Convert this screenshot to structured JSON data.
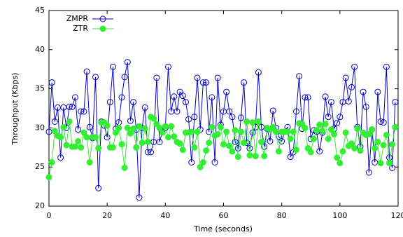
{
  "chart_data": {
    "type": "line",
    "x_label": "Time (seconds)",
    "y_label": "Throughput (Kbps)",
    "x": [
      0,
      1,
      2,
      3,
      4,
      5,
      6,
      7,
      8,
      9,
      10,
      11,
      12,
      13,
      14,
      15,
      16,
      17,
      18,
      19,
      20,
      21,
      22,
      23,
      24,
      25,
      26,
      27,
      28,
      29,
      30,
      31,
      32,
      33,
      34,
      35,
      36,
      37,
      38,
      39,
      40,
      41,
      42,
      43,
      44,
      45,
      46,
      47,
      48,
      49,
      50,
      51,
      52,
      53,
      54,
      55,
      56,
      57,
      58,
      59,
      60,
      61,
      62,
      63,
      64,
      65,
      66,
      67,
      68,
      69,
      70,
      71,
      72,
      73,
      74,
      75,
      76,
      77,
      78,
      79,
      80,
      81,
      82,
      83,
      84,
      85,
      86,
      87,
      88,
      89,
      90,
      91,
      92,
      93,
      94,
      95,
      96,
      97,
      98,
      99,
      100,
      101,
      102,
      103,
      104,
      105,
      106,
      107,
      108,
      109,
      110,
      111,
      112,
      113,
      114,
      115,
      116,
      117,
      118,
      119
    ],
    "series": [
      {
        "name": "ZMPR",
        "color": "#0000cc",
        "marker_filled": false,
        "values": [
          29.5,
          35.8,
          30.8,
          32.6,
          26.2,
          32.6,
          30,
          32.7,
          32.7,
          33.9,
          29.8,
          32.1,
          32.1,
          37.2,
          30.1,
          28.7,
          36.5,
          22.3,
          30.8,
          30.3,
          28.8,
          33.3,
          37.8,
          29.9,
          30.7,
          33.9,
          36.5,
          38.4,
          30.9,
          33.3,
          29.8,
          21.1,
          30.0,
          32.6,
          26.9,
          26.9,
          28.2,
          36.4,
          28.2,
          29.5,
          30.0,
          37.8,
          32.1,
          34,
          32.1,
          34.6,
          34.1,
          33.3,
          31.1,
          25.6,
          31.4,
          36.4,
          29.8,
          35.8,
          35.8,
          29.5,
          33.9,
          25.6,
          36.4,
          30.4,
          32.1,
          34.6,
          32.1,
          31.4,
          28.2,
          27.4,
          31.3,
          35.8,
          28.1,
          27.4,
          29.4,
          30.1,
          37.1,
          30.1,
          27.6,
          29.9,
          28.3,
          32.2,
          30.0,
          28.9,
          28.3,
          29.5,
          30.1,
          26.3,
          26.9,
          32.1,
          36.6,
          29.9,
          33.9,
          33.9,
          28.6,
          29.7,
          29.5,
          27,
          29.4,
          34,
          31.4,
          33.3,
          29.9,
          30.6,
          31.4,
          33.3,
          36.4,
          33.4,
          35.2,
          37.8,
          30.1,
          27.6,
          34.6,
          32.7,
          24.3,
          29.8,
          25.6,
          34.6,
          30.8,
          30.7,
          37.8,
          26.2,
          24.9,
          33.3
        ]
      },
      {
        "name": "ZTR",
        "color": "#33ee33",
        "marker_filled": true,
        "values": [
          23.7,
          25.6,
          29.6,
          29.0,
          28.8,
          30.1,
          27.8,
          30.8,
          27.6,
          27.6,
          28.3,
          27.5,
          29.4,
          28.8,
          25.6,
          28.8,
          28.8,
          27.4,
          30.7,
          30.7,
          30.3,
          27.5,
          27.5,
          29.4,
          30.0,
          27.9,
          24.9,
          30.0,
          29.3,
          29.9,
          27.5,
          30.2,
          28.1,
          29.9,
          28.2,
          31.4,
          31.2,
          30.5,
          30.0,
          29.4,
          30.2,
          28.8,
          30.2,
          28.9,
          28.2,
          28.0,
          27.2,
          29.4,
          29.4,
          29.5,
          27.5,
          29.5,
          25.0,
          25.6,
          27.1,
          28.1,
          30.1,
          29.0,
          29.2,
          30.1,
          27.9,
          29.5,
          27.7,
          27.0,
          29.7,
          26.3,
          29.5,
          28.1,
          30.8,
          26.5,
          30.7,
          26.4,
          30.8,
          28.2,
          26.4,
          30.0,
          29.8,
          30.1,
          29.5,
          27.0,
          29.5,
          29.5,
          29.5,
          28.6,
          29.5,
          27.2,
          30.6,
          30.5,
          30.0,
          27.4,
          26.9,
          28.6,
          29.7,
          30.4,
          29.6,
          30.5,
          28.6,
          29.8,
          29.2,
          26.2,
          25.5,
          27.0,
          29.4,
          27.7,
          28.0,
          27.4,
          29.9,
          27.1,
          29.4,
          29.1,
          29.2,
          29.8,
          27.4,
          28.2,
          25.5,
          27.8,
          29.1,
          25.5,
          27.9,
          30.1
        ]
      }
    ],
    "xlim": [
      0,
      120
    ],
    "xticks": [
      0,
      20,
      40,
      60,
      80,
      100,
      120
    ],
    "ylim": [
      20,
      45
    ],
    "yticks": [
      20,
      25,
      30,
      35,
      40,
      45
    ],
    "legend": "top-left"
  }
}
